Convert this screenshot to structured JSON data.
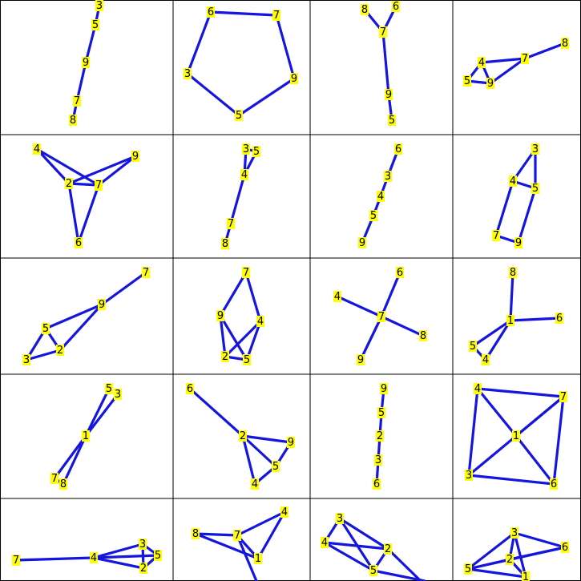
{
  "colors": {
    "edge": "#1515e0",
    "label_bg": "#ffff00",
    "label_text": "#000000",
    "grid": "#000000"
  },
  "graphs": [
    {
      "nodes": [
        "3",
        "5",
        "9",
        "7",
        "8"
      ],
      "edges": [
        [
          0,
          1
        ],
        [
          1,
          2
        ],
        [
          2,
          3
        ],
        [
          3,
          4
        ]
      ]
    },
    {
      "nodes": [
        "6",
        "7",
        "9",
        "5",
        "3"
      ],
      "edges": [
        [
          0,
          1
        ],
        [
          1,
          2
        ],
        [
          2,
          3
        ],
        [
          3,
          4
        ],
        [
          4,
          0
        ]
      ]
    },
    {
      "nodes": [
        "8",
        "6",
        "7",
        "9",
        "5"
      ],
      "edges": [
        [
          0,
          2
        ],
        [
          1,
          2
        ],
        [
          2,
          3
        ],
        [
          3,
          4
        ]
      ]
    },
    {
      "nodes": [
        "8",
        "7",
        "4",
        "5",
        "9"
      ],
      "edges": [
        [
          0,
          1
        ],
        [
          1,
          2
        ],
        [
          1,
          4
        ],
        [
          2,
          3
        ],
        [
          3,
          4
        ],
        [
          2,
          4
        ]
      ]
    },
    {
      "nodes": [
        "4",
        "9",
        "2",
        "7",
        "6"
      ],
      "edges": [
        [
          0,
          2
        ],
        [
          0,
          3
        ],
        [
          1,
          2
        ],
        [
          1,
          3
        ],
        [
          2,
          4
        ],
        [
          3,
          4
        ],
        [
          2,
          3
        ]
      ]
    },
    {
      "nodes": [
        "3",
        "5",
        "4",
        "7",
        "8"
      ],
      "edges": [
        [
          0,
          1
        ],
        [
          0,
          2
        ],
        [
          1,
          2
        ],
        [
          2,
          3
        ],
        [
          3,
          4
        ]
      ]
    },
    {
      "nodes": [
        "6",
        "3",
        "4",
        "5",
        "9"
      ],
      "edges": [
        [
          0,
          1
        ],
        [
          1,
          2
        ],
        [
          2,
          3
        ],
        [
          3,
          4
        ]
      ]
    },
    {
      "nodes": [
        "3",
        "4",
        "5",
        "7",
        "9"
      ],
      "edges": [
        [
          0,
          1
        ],
        [
          0,
          2
        ],
        [
          1,
          2
        ],
        [
          1,
          3
        ],
        [
          2,
          4
        ],
        [
          3,
          4
        ]
      ]
    },
    {
      "nodes": [
        "7",
        "9",
        "5",
        "2",
        "3"
      ],
      "edges": [
        [
          0,
          1
        ],
        [
          1,
          2
        ],
        [
          1,
          3
        ],
        [
          2,
          3
        ],
        [
          2,
          4
        ],
        [
          3,
          4
        ]
      ]
    },
    {
      "nodes": [
        "7",
        "9",
        "4",
        "2",
        "5"
      ],
      "edges": [
        [
          0,
          1
        ],
        [
          0,
          2
        ],
        [
          1,
          3
        ],
        [
          1,
          4
        ],
        [
          2,
          3
        ],
        [
          2,
          4
        ],
        [
          3,
          4
        ]
      ]
    },
    {
      "nodes": [
        "6",
        "4",
        "7",
        "8",
        "9"
      ],
      "edges": [
        [
          0,
          2
        ],
        [
          1,
          2
        ],
        [
          2,
          3
        ],
        [
          2,
          4
        ]
      ]
    },
    {
      "nodes": [
        "8",
        "1",
        "6",
        "5",
        "4"
      ],
      "edges": [
        [
          0,
          1
        ],
        [
          1,
          2
        ],
        [
          1,
          3
        ],
        [
          1,
          4
        ],
        [
          3,
          4
        ]
      ]
    },
    {
      "nodes": [
        "5",
        "3",
        "1",
        "7",
        "8"
      ],
      "edges": [
        [
          0,
          2
        ],
        [
          1,
          2
        ],
        [
          2,
          3
        ],
        [
          2,
          4
        ],
        [
          3,
          4
        ]
      ]
    },
    {
      "nodes": [
        "6",
        "2",
        "9",
        "5",
        "4"
      ],
      "edges": [
        [
          0,
          1
        ],
        [
          1,
          2
        ],
        [
          1,
          3
        ],
        [
          1,
          4
        ],
        [
          2,
          3
        ],
        [
          3,
          4
        ]
      ]
    },
    {
      "nodes": [
        "9",
        "5",
        "2",
        "3",
        "6"
      ],
      "edges": [
        [
          0,
          1
        ],
        [
          1,
          2
        ],
        [
          2,
          3
        ],
        [
          3,
          4
        ]
      ]
    },
    {
      "nodes": [
        "4",
        "7",
        "1",
        "3",
        "6"
      ],
      "edges": [
        [
          0,
          1
        ],
        [
          0,
          2
        ],
        [
          0,
          3
        ],
        [
          1,
          2
        ],
        [
          1,
          3
        ],
        [
          2,
          4
        ],
        [
          3,
          4
        ],
        [
          1,
          4
        ]
      ]
    },
    {
      "nodes": [
        "7",
        "4",
        "3",
        "5",
        "2"
      ],
      "edges": [
        [
          0,
          1
        ],
        [
          1,
          2
        ],
        [
          1,
          3
        ],
        [
          1,
          4
        ],
        [
          2,
          3
        ],
        [
          2,
          4
        ],
        [
          3,
          4
        ]
      ]
    },
    {
      "nodes": [
        "8",
        "7",
        "4",
        "1"
      ],
      "edges": [
        [
          0,
          1
        ],
        [
          0,
          3
        ],
        [
          1,
          2
        ],
        [
          1,
          3
        ],
        [
          2,
          3
        ]
      ]
    },
    {
      "nodes": [
        "3",
        "4",
        "2",
        "5"
      ],
      "edges": [
        [
          0,
          1
        ],
        [
          0,
          2
        ],
        [
          0,
          3
        ],
        [
          1,
          2
        ],
        [
          1,
          3
        ],
        [
          2,
          3
        ]
      ]
    },
    {
      "nodes": [
        "3",
        "6",
        "5",
        "2",
        "1"
      ],
      "edges": [
        [
          0,
          2
        ],
        [
          0,
          3
        ],
        [
          0,
          4
        ],
        [
          1,
          2
        ],
        [
          1,
          3
        ],
        [
          2,
          3
        ],
        [
          2,
          4
        ],
        [
          3,
          4
        ],
        [
          0,
          1
        ]
      ]
    }
  ]
}
